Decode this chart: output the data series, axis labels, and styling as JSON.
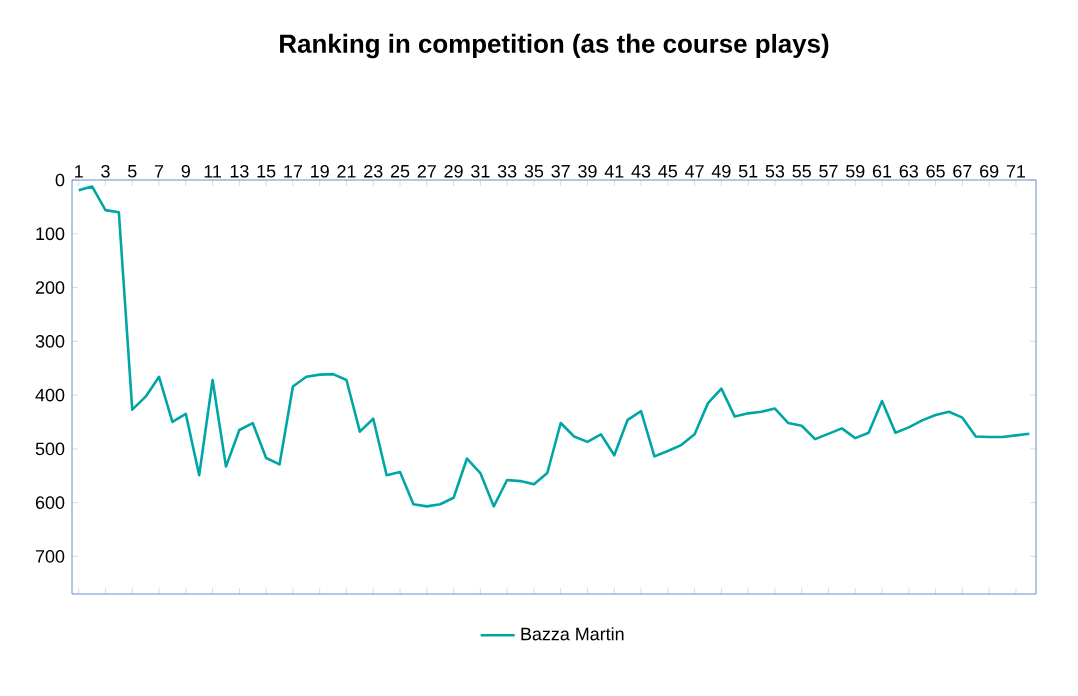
{
  "chart_data": {
    "type": "line",
    "title": "Ranking in competition (as the course plays)",
    "categories": [
      "1",
      null,
      "3",
      null,
      "5",
      null,
      "7",
      null,
      "9",
      null,
      "11",
      null,
      "13",
      null,
      "15",
      null,
      "17",
      null,
      "19",
      null,
      "21",
      null,
      "23",
      null,
      "25",
      null,
      "27",
      null,
      "29",
      null,
      "31",
      null,
      "33",
      null,
      "35",
      null,
      "37",
      null,
      "39",
      null,
      "41",
      null,
      "43",
      null,
      "45",
      null,
      "47",
      null,
      "49",
      null,
      "51",
      null,
      "53",
      null,
      "55",
      null,
      "57",
      null,
      "59",
      null,
      "61",
      null,
      "63",
      null,
      "65",
      null,
      "67",
      null,
      "69",
      null,
      "71",
      null
    ],
    "series": [
      {
        "name": "Bazza Martin",
        "color": "#00a6a6",
        "values": [
          19,
          12,
          56,
          60,
          427,
          403,
          366,
          450,
          435,
          549,
          372,
          533,
          465,
          452,
          517,
          529,
          384,
          366,
          362,
          361,
          372,
          468,
          444,
          549,
          543,
          603,
          607,
          603,
          591,
          518,
          545,
          607,
          558,
          560,
          566,
          545,
          452,
          477,
          487,
          473,
          512,
          446,
          430,
          514,
          504,
          493,
          473,
          415,
          388,
          440,
          434,
          431,
          425,
          452,
          457,
          482,
          472,
          462,
          480,
          470,
          411,
          470,
          460,
          447,
          437,
          431,
          442,
          477,
          478,
          478,
          475,
          472
        ]
      }
    ],
    "ylim": [
      770,
      0
    ],
    "yticks": [
      0,
      100,
      200,
      300,
      400,
      500,
      600,
      700
    ],
    "legend": "bottom",
    "grid": false,
    "marker": "none",
    "line_style": "solid"
  }
}
